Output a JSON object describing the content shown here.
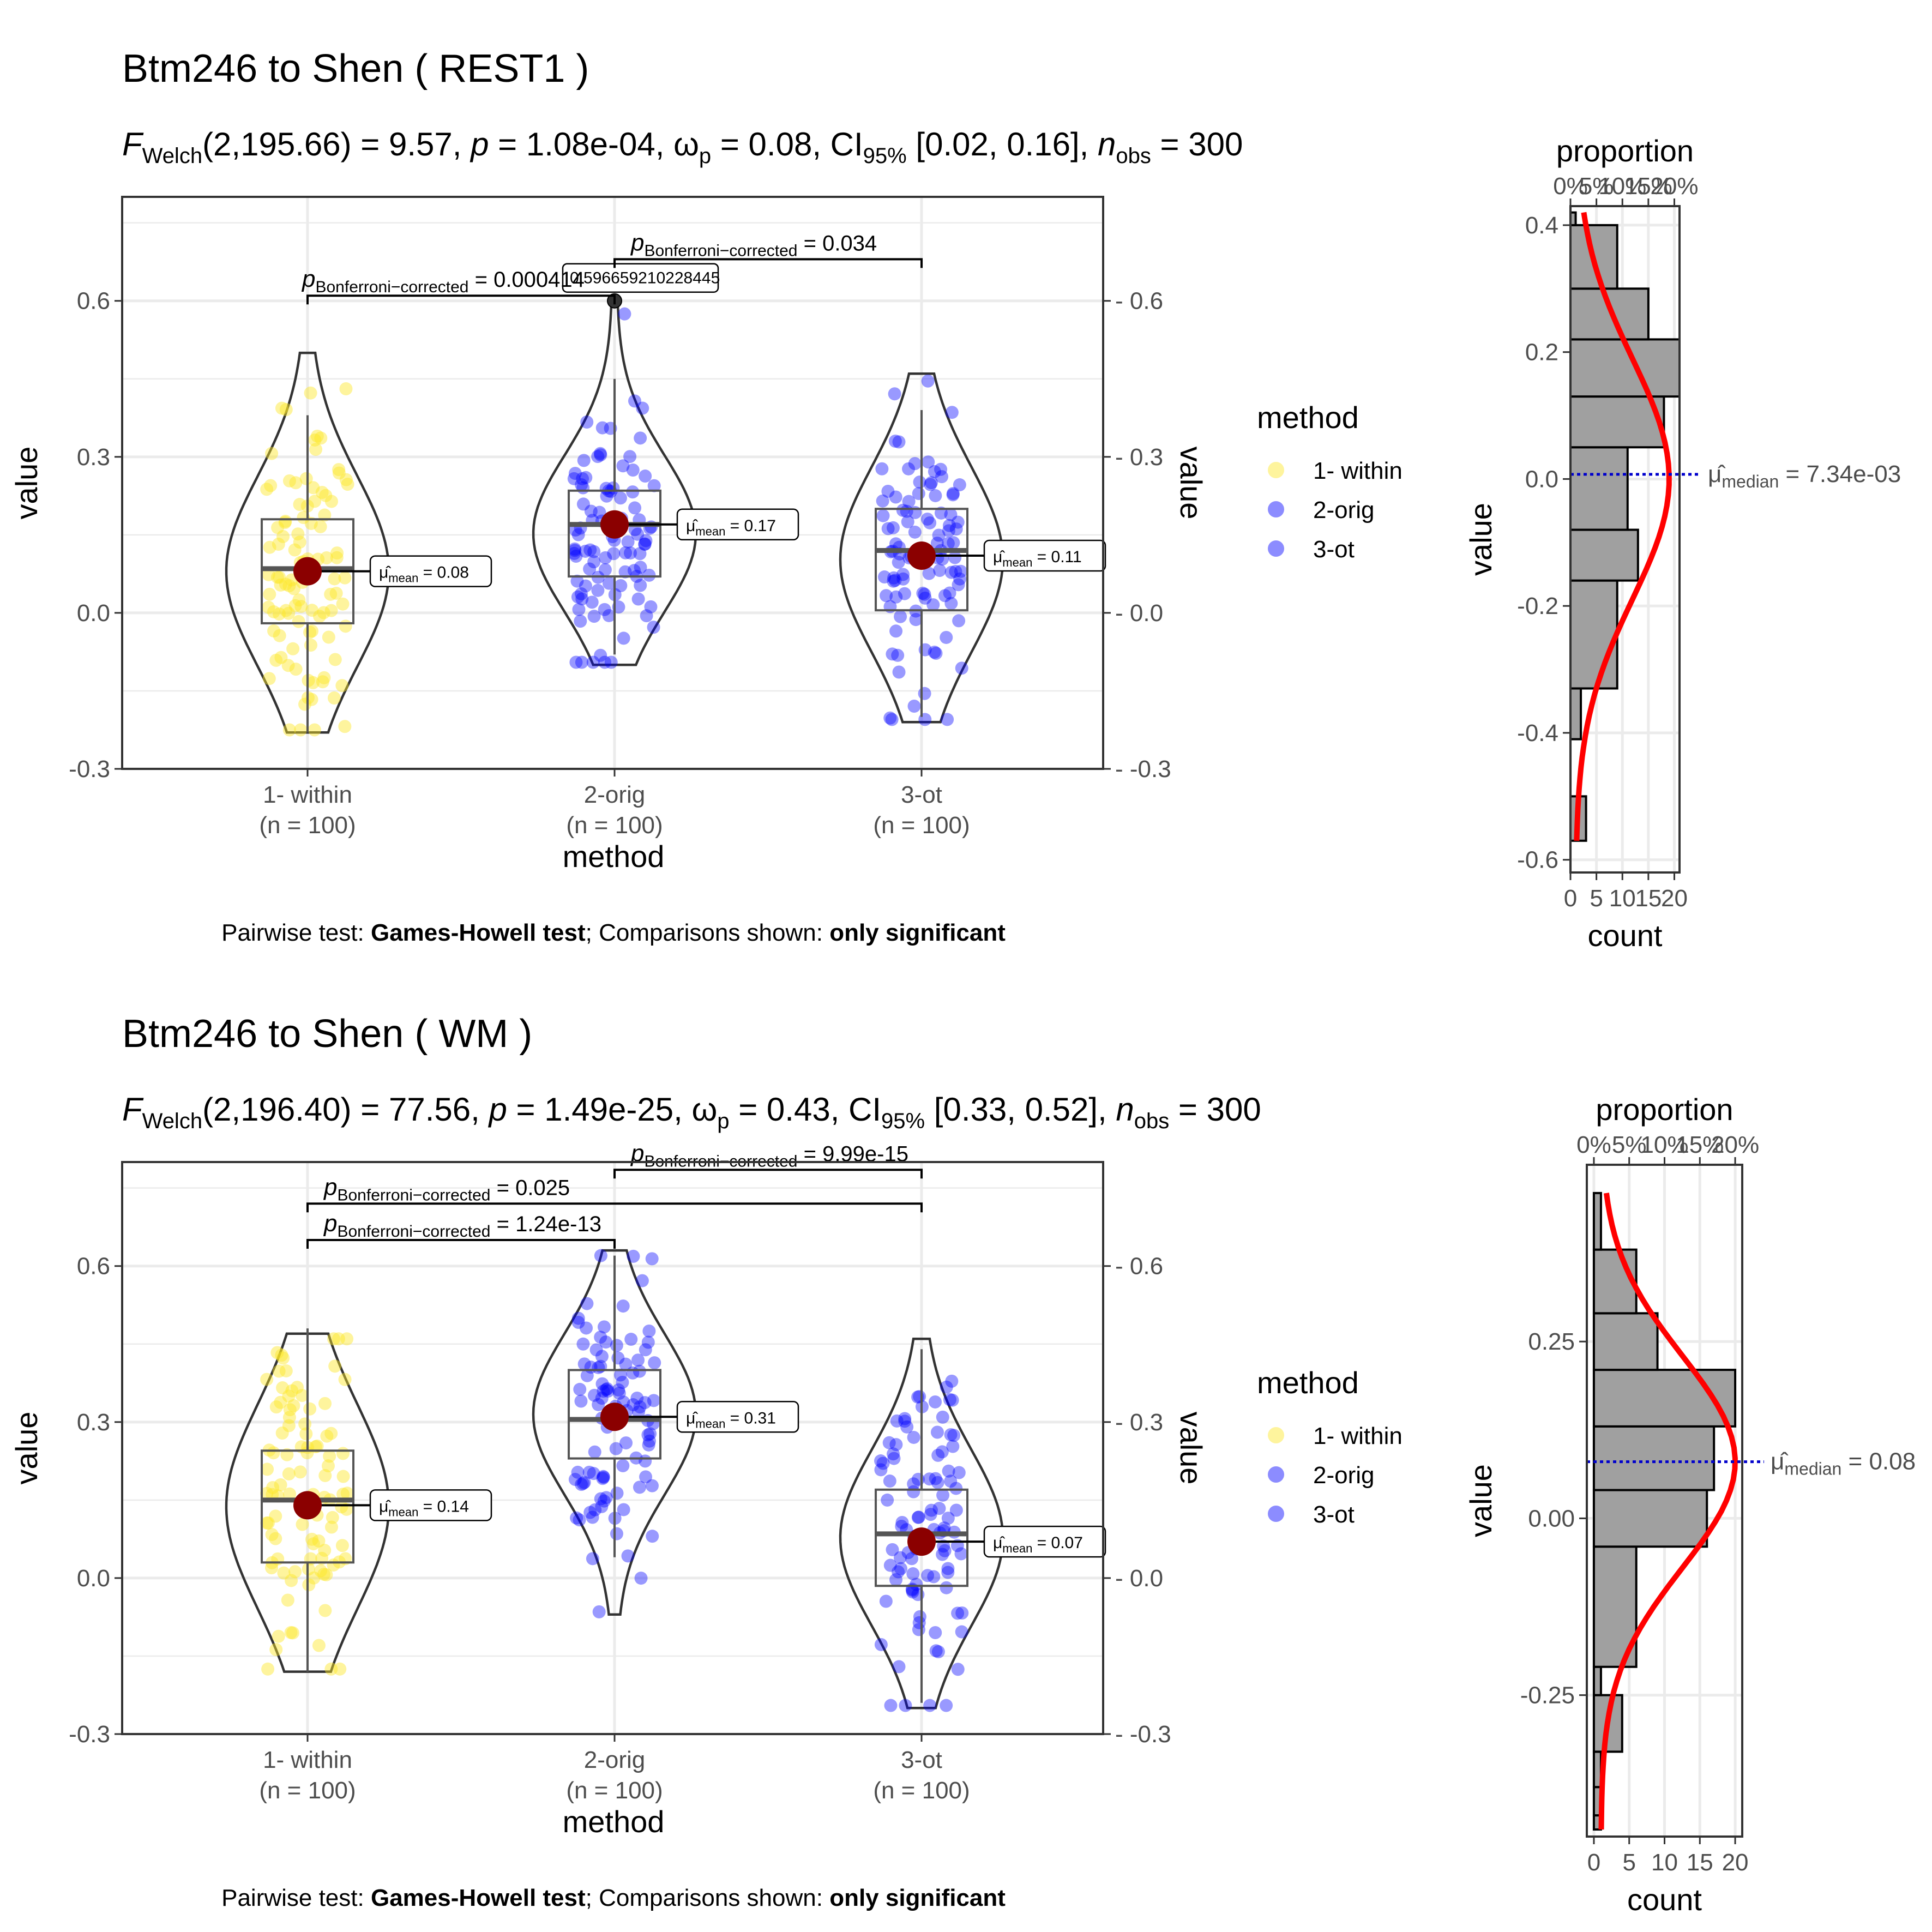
{
  "chart_data": [
    {
      "type": "violin",
      "title": "Btm246 to Shen ( REST1 )",
      "subtitle": {
        "df": "(2,195.66)",
        "F": "= 9.57,",
        "p": "= 1.08e-04,",
        "omega": "= 0.08,",
        "ci": "[0.02, 0.16],",
        "n": "= 300"
      },
      "xlabel": "method",
      "ylabel": "value",
      "ylim": [
        -0.3,
        0.8
      ],
      "yticks": [
        "-0.3",
        "0.0",
        "0.3",
        "0.6"
      ],
      "categories": [
        {
          "name": "1- within",
          "n_label": "(n = 100)",
          "color": "#FDE725",
          "mean": 0.08,
          "mean_label": "= 0.08",
          "q1": -0.02,
          "median": 0.085,
          "q3": 0.18,
          "wlo": -0.23,
          "whi": 0.38,
          "vmin": -0.23,
          "vmax": 0.5
        },
        {
          "name": "2-orig",
          "n_label": "(n = 100)",
          "color": "#0000FF",
          "mean": 0.17,
          "mean_label": "= 0.17",
          "q1": 0.07,
          "median": 0.17,
          "q3": 0.235,
          "wlo": -0.08,
          "whi": 0.45,
          "vmin": -0.1,
          "vmax": 0.6
        },
        {
          "name": "3-ot",
          "n_label": "(n = 100)",
          "color": "#0000FF",
          "mean": 0.11,
          "mean_label": "= 0.11",
          "q1": 0.005,
          "median": 0.12,
          "q3": 0.2,
          "wlo": -0.2,
          "whi": 0.39,
          "vmin": -0.21,
          "vmax": 0.46
        }
      ],
      "outlier": {
        "category": 1,
        "value": 0.6,
        "label": "0.596659210228445"
      },
      "comparisons": [
        {
          "from": 0,
          "to": 1,
          "y": 0.61,
          "p": "= 0.000414"
        },
        {
          "from": 1,
          "to": 2,
          "y": 0.68,
          "p": "= 0.034"
        }
      ],
      "caption": {
        "prefix": "Pairwise test: ",
        "test": "Games-Howell test",
        "mid": "; Comparisons shown: ",
        "shown": "only significant"
      },
      "legend": {
        "title": "method",
        "placement": "right",
        "items": [
          "1- within",
          "2-orig",
          "3-ot"
        ],
        "colors": [
          "#FDE725",
          "#0000FF",
          "#0000FF"
        ]
      },
      "histogram": {
        "xlabel": "count",
        "top_label": "proportion",
        "ylabel": "value",
        "xticks": [
          "0",
          "5",
          "10",
          "15",
          "20"
        ],
        "xlim": [
          0,
          21
        ],
        "top_ticks": [
          "0%",
          "5%",
          "10%",
          "15%",
          "20%"
        ],
        "yticks": [
          "-0.6",
          "-0.4",
          "-0.2",
          "0.0",
          "0.2",
          "0.4"
        ],
        "ylim": [
          -0.62,
          0.43
        ],
        "bins": [
          [
            -0.57,
            -0.5,
            3
          ],
          [
            -0.5,
            -0.41,
            0
          ],
          [
            -0.41,
            -0.33,
            2
          ],
          [
            -0.33,
            -0.16,
            9
          ],
          [
            -0.16,
            -0.08,
            13
          ],
          [
            -0.08,
            0.05,
            11
          ],
          [
            0.05,
            0.13,
            18
          ],
          [
            0.13,
            0.22,
            21
          ],
          [
            0.22,
            0.3,
            15
          ],
          [
            0.3,
            0.4,
            9
          ],
          [
            0.4,
            0.42,
            1
          ]
        ],
        "median": 0.00734,
        "median_label": "= 7.34e-03"
      }
    },
    {
      "type": "violin",
      "title": "Btm246 to Shen ( WM )",
      "subtitle": {
        "df": "(2,196.40)",
        "F": "= 77.56,",
        "p": "= 1.49e-25,",
        "omega": "= 0.43,",
        "ci": "[0.33, 0.52],",
        "n": "= 300"
      },
      "xlabel": "method",
      "ylabel": "value",
      "ylim": [
        -0.3,
        0.8
      ],
      "yticks": [
        "-0.3",
        "0.0",
        "0.3",
        "0.6"
      ],
      "categories": [
        {
          "name": "1- within",
          "n_label": "(n = 100)",
          "color": "#FDE725",
          "mean": 0.14,
          "mean_label": "= 0.14",
          "q1": 0.03,
          "median": 0.15,
          "q3": 0.245,
          "wlo": -0.18,
          "whi": 0.48,
          "vmin": -0.18,
          "vmax": 0.47
        },
        {
          "name": "2-orig",
          "n_label": "(n = 100)",
          "color": "#0000FF",
          "mean": 0.31,
          "mean_label": "= 0.31",
          "q1": 0.23,
          "median": 0.305,
          "q3": 0.4,
          "wlo": 0.04,
          "whi": 0.62,
          "vmin": -0.07,
          "vmax": 0.63
        },
        {
          "name": "3-ot",
          "n_label": "(n = 100)",
          "color": "#0000FF",
          "mean": 0.07,
          "mean_label": "= 0.07",
          "q1": -0.015,
          "median": 0.085,
          "q3": 0.17,
          "wlo": -0.24,
          "whi": 0.44,
          "vmin": -0.25,
          "vmax": 0.46
        }
      ],
      "comparisons": [
        {
          "from": 0,
          "to": 1,
          "y": 0.65,
          "p": "= 1.24e-13"
        },
        {
          "from": 0,
          "to": 2,
          "y": 0.72,
          "p": "= 0.025"
        },
        {
          "from": 1,
          "to": 2,
          "y": 0.785,
          "p": "= 9.99e-15"
        }
      ],
      "caption": {
        "prefix": "Pairwise test: ",
        "test": "Games-Howell test",
        "mid": "; Comparisons shown: ",
        "shown": "only significant"
      },
      "legend": {
        "title": "method",
        "placement": "right",
        "items": [
          "1- within",
          "2-orig",
          "3-ot"
        ],
        "colors": [
          "#FDE725",
          "#0000FF",
          "#0000FF"
        ]
      },
      "histogram": {
        "xlabel": "count",
        "top_label": "proportion",
        "ylabel": "value",
        "xticks": [
          "0",
          "5",
          "10",
          "15",
          "20"
        ],
        "xlim": [
          -1,
          21
        ],
        "top_ticks": [
          "0%",
          "5%",
          "10%",
          "15%",
          "20%"
        ],
        "yticks": [
          "-0.25",
          "0.00",
          "0.25"
        ],
        "ylim": [
          -0.45,
          0.5
        ],
        "bins": [
          [
            -0.44,
            -0.42,
            1
          ],
          [
            -0.42,
            -0.38,
            1
          ],
          [
            -0.38,
            -0.33,
            1
          ],
          [
            -0.33,
            -0.25,
            4
          ],
          [
            -0.25,
            -0.21,
            1
          ],
          [
            -0.21,
            -0.04,
            6
          ],
          [
            -0.04,
            0.04,
            16
          ],
          [
            0.04,
            0.13,
            17
          ],
          [
            0.13,
            0.21,
            20
          ],
          [
            0.21,
            0.29,
            9
          ],
          [
            0.29,
            0.38,
            6
          ],
          [
            0.38,
            0.46,
            1
          ]
        ],
        "median": 0.08,
        "median_label": "= 0.08"
      }
    }
  ]
}
